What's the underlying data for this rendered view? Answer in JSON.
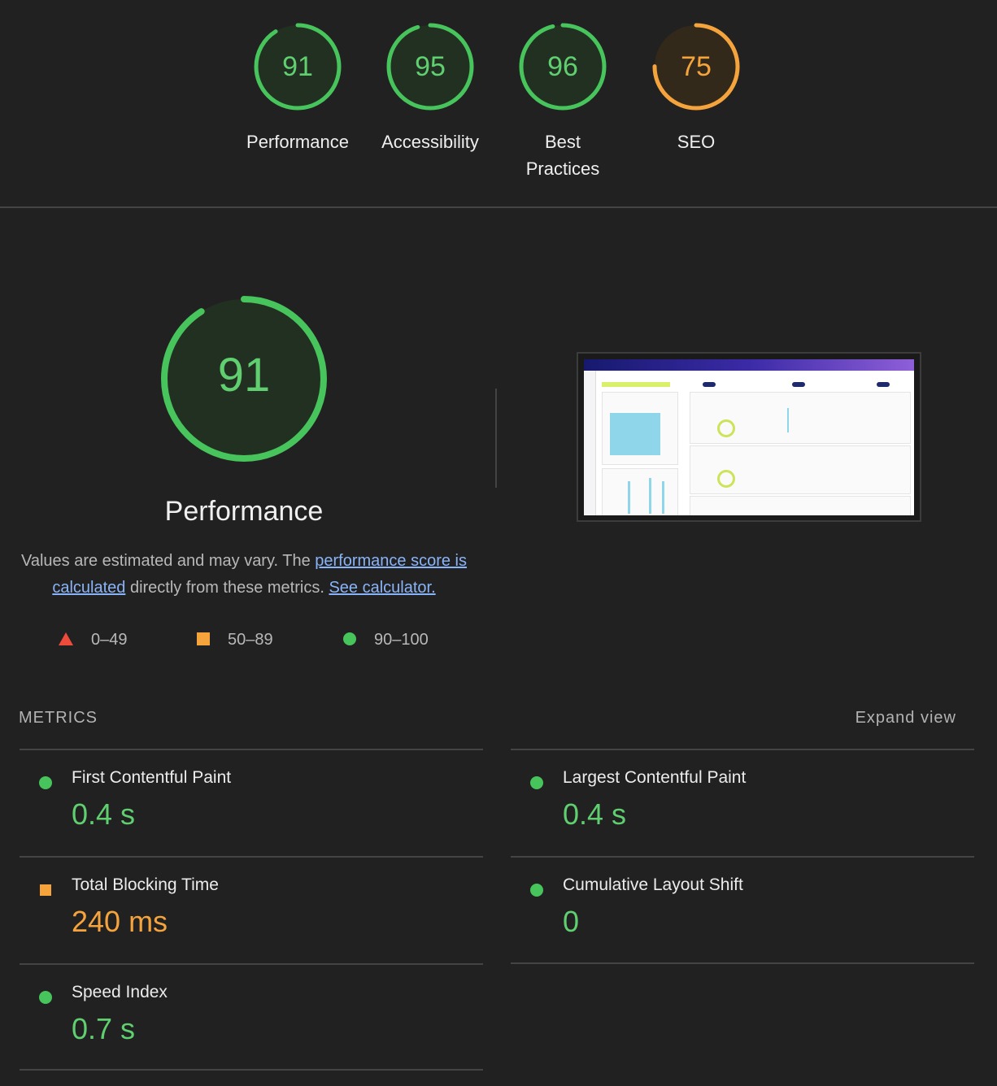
{
  "gauges": [
    {
      "label": "Performance",
      "score": "91",
      "color": "#47c45b",
      "fraction": 0.91
    },
    {
      "label": "Accessibility",
      "score": "95",
      "color": "#47c45b",
      "fraction": 0.95
    },
    {
      "label_line1": "Best",
      "label_line2": "Practices",
      "score": "96",
      "color": "#47c45b",
      "fraction": 0.96
    },
    {
      "label": "SEO",
      "score": "75",
      "color": "#f5a33d",
      "fraction": 0.75
    }
  ],
  "main": {
    "score": "91",
    "fraction": 0.91,
    "title": "Performance",
    "desc_part1": "Values are estimated and may vary. The ",
    "desc_link1": "performance score is calculated",
    "desc_part2": " directly from these metrics. ",
    "desc_link2": "See calculator."
  },
  "legend": {
    "fail": "0–49",
    "average": "50–89",
    "pass": "90–100"
  },
  "metrics": {
    "header": "METRICS",
    "expand_label": "Expand view",
    "items": [
      {
        "name": "First Contentful Paint",
        "value": "0.4 s",
        "status": "pass"
      },
      {
        "name": "Largest Contentful Paint",
        "value": "0.4 s",
        "status": "pass"
      },
      {
        "name": "Total Blocking Time",
        "value": "240 ms",
        "status": "average"
      },
      {
        "name": "Cumulative Layout Shift",
        "value": "0",
        "status": "pass"
      },
      {
        "name": "Speed Index",
        "value": "0.7 s",
        "status": "pass"
      }
    ]
  },
  "colors": {
    "pass": "#47c45b",
    "average": "#f5a33d",
    "fail": "#ef4b3a",
    "background": "#212121"
  }
}
